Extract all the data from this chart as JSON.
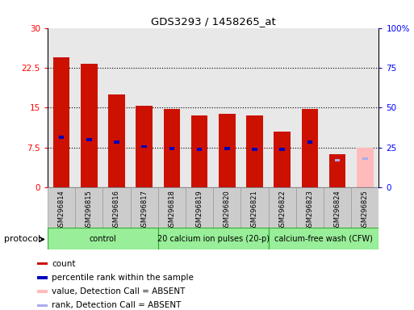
{
  "title": "GDS3293 / 1458265_at",
  "samples": [
    "GSM296814",
    "GSM296815",
    "GSM296816",
    "GSM296817",
    "GSM296818",
    "GSM296819",
    "GSM296820",
    "GSM296821",
    "GSM296822",
    "GSM296823",
    "GSM296824",
    "GSM296825"
  ],
  "count_values": [
    24.5,
    23.2,
    17.5,
    15.3,
    14.8,
    13.5,
    13.9,
    13.5,
    10.5,
    14.8,
    6.2,
    null
  ],
  "count_absent": [
    null,
    null,
    null,
    null,
    null,
    null,
    null,
    null,
    null,
    null,
    null,
    7.5
  ],
  "percentile_values": [
    9.5,
    9.0,
    8.5,
    7.7,
    7.3,
    7.2,
    7.3,
    7.2,
    7.2,
    8.5,
    null,
    null
  ],
  "percentile_absent": [
    null,
    null,
    null,
    null,
    null,
    null,
    null,
    null,
    null,
    null,
    5.2,
    5.5
  ],
  "ylim_left": [
    0,
    30
  ],
  "ylim_right": [
    0,
    100
  ],
  "yticks_left": [
    0,
    7.5,
    15,
    22.5,
    30
  ],
  "ytick_labels_left": [
    "0",
    "7.5",
    "15",
    "22.5",
    "30"
  ],
  "yticks_right": [
    0,
    25,
    50,
    75,
    100
  ],
  "ytick_labels_right": [
    "0",
    "25",
    "50",
    "75",
    "100%"
  ],
  "bar_color_red": "#cc1100",
  "bar_color_pink": "#ffbbbb",
  "dot_color_blue": "#0000bb",
  "dot_color_lightblue": "#aaaaee",
  "protocol_label": "protocol",
  "groups": [
    {
      "label": "control",
      "start": 0,
      "end": 4
    },
    {
      "label": "20 calcium ion pulses (20-p)",
      "start": 4,
      "end": 8
    },
    {
      "label": "calcium-free wash (CFW)",
      "start": 8,
      "end": 12
    }
  ],
  "group_color": "#99ee99",
  "group_color_dark": "#44cc44",
  "legend_items": [
    {
      "color": "#cc1100",
      "label": "count"
    },
    {
      "color": "#0000bb",
      "label": "percentile rank within the sample"
    },
    {
      "color": "#ffbbbb",
      "label": "value, Detection Call = ABSENT"
    },
    {
      "color": "#aaaaee",
      "label": "rank, Detection Call = ABSENT"
    }
  ]
}
